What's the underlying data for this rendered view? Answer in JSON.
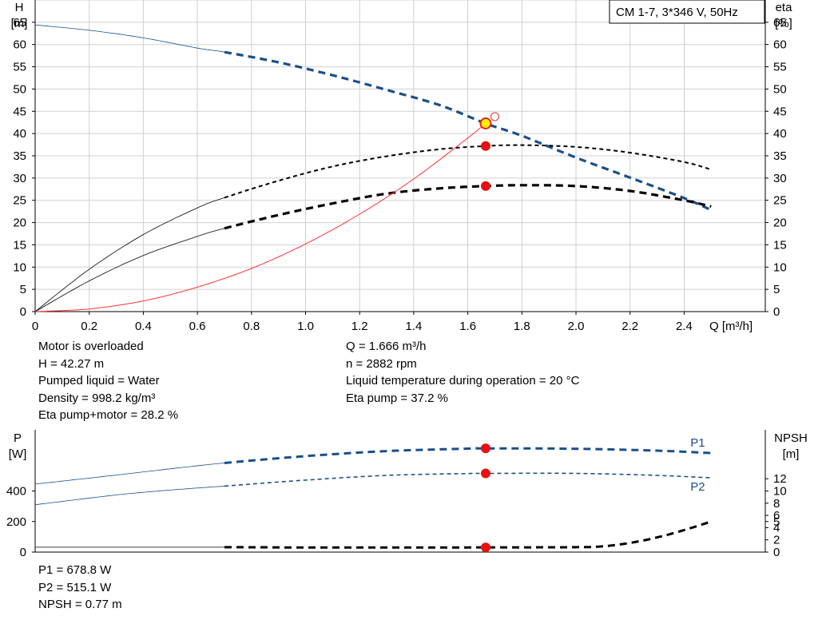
{
  "chart_data": [
    {
      "type": "line",
      "title": "CM 1-7, 3*346 V, 50Hz",
      "xlabel": "Q [m³/h]",
      "ylabel_left": [
        "H",
        "[m]"
      ],
      "ylabel_right": [
        "eta",
        "[%]"
      ],
      "xlim": [
        0,
        2.7
      ],
      "ylim": [
        0,
        70
      ],
      "x_ticks": [
        "0",
        "0.2",
        "0.4",
        "0.6",
        "0.8",
        "1.0",
        "1.2",
        "1.4",
        "1.6",
        "1.8",
        "2.0",
        "2.2",
        "2.4"
      ],
      "y_ticks": [
        "0",
        "5",
        "10",
        "15",
        "20",
        "25",
        "30",
        "35",
        "40",
        "45",
        "50",
        "55",
        "60",
        "65"
      ],
      "grid": true,
      "series": [
        {
          "key": "H",
          "color": "#1a4f8a",
          "x": [
            0,
            0.2,
            0.4,
            0.6,
            0.7,
            0.9,
            1.1,
            1.3,
            1.5,
            1.666,
            1.8,
            2.0,
            2.2,
            2.4,
            2.5
          ],
          "y": [
            64.4,
            63.2,
            61.5,
            59.2,
            58.3,
            56.0,
            53.1,
            49.8,
            46.3,
            42.27,
            39.5,
            34.6,
            30.1,
            25.5,
            22.8
          ]
        },
        {
          "key": "eta_pump",
          "color": "#000000",
          "x": [
            0,
            0.2,
            0.4,
            0.6,
            0.7,
            0.9,
            1.1,
            1.3,
            1.5,
            1.666,
            1.8,
            2.0,
            2.2,
            2.4,
            2.5
          ],
          "y": [
            0,
            9.5,
            17.3,
            23.3,
            25.6,
            29.4,
            32.6,
            34.9,
            36.5,
            37.2,
            37.4,
            37.0,
            35.7,
            33.6,
            31.9
          ]
        },
        {
          "key": "eta_pump_motor",
          "color": "#000000",
          "x": [
            0,
            0.2,
            0.4,
            0.6,
            0.7,
            0.9,
            1.1,
            1.3,
            1.5,
            1.666,
            1.8,
            2.0,
            2.2,
            2.4,
            2.5
          ],
          "y": [
            0,
            6.9,
            12.6,
            16.9,
            18.7,
            21.7,
            24.3,
            26.5,
            27.7,
            28.2,
            28.4,
            28.2,
            27.1,
            25.0,
            23.6
          ]
        },
        {
          "key": "system_curve",
          "color": "#ff3333",
          "x": [
            0,
            0.2,
            0.4,
            0.6,
            0.8,
            1.0,
            1.2,
            1.4,
            1.6,
            1.666
          ],
          "y": [
            0,
            0.6,
            2.4,
            5.5,
            9.7,
            15.2,
            21.9,
            29.8,
            39.0,
            42.27
          ]
        }
      ],
      "duty_points": [
        {
          "x": 1.666,
          "y": 42.27,
          "style": "yellow"
        },
        {
          "x": 1.666,
          "y": 37.2,
          "style": "red"
        },
        {
          "x": 1.666,
          "y": 28.2,
          "style": "red"
        }
      ],
      "open_marker": {
        "x": 1.7,
        "y": 43.8
      }
    },
    {
      "type": "line",
      "ylabel_left": [
        "P",
        "[W]"
      ],
      "ylabel_right": [
        "NPSH",
        "[m]"
      ],
      "xlim": [
        0,
        2.7
      ],
      "ylim_left": [
        0,
        800
      ],
      "ylim_right": [
        0,
        20
      ],
      "y_ticks_left": [
        "0",
        "200",
        "400"
      ],
      "y_ticks_right": [
        "0",
        "2",
        "4",
        "5",
        "6",
        "8",
        "10",
        "12"
      ],
      "y_ticks_right_values": [
        0,
        2,
        4,
        5,
        6,
        8,
        10,
        12
      ],
      "series": [
        {
          "key": "P1",
          "name": "P1",
          "color": "#1a4f8a",
          "x": [
            0,
            0.3,
            0.5,
            0.7,
            1.0,
            1.3,
            1.6,
            1.666,
            2.0,
            2.3,
            2.5
          ],
          "y": [
            445,
            504,
            545,
            583,
            628,
            661,
            677,
            678.8,
            676,
            664,
            648
          ]
        },
        {
          "key": "P2",
          "name": "P2",
          "color": "#1a4f8a",
          "x": [
            0,
            0.3,
            0.5,
            0.7,
            1.0,
            1.3,
            1.6,
            1.666,
            2.0,
            2.3,
            2.5
          ],
          "y": [
            310,
            374,
            406,
            432,
            471,
            502,
            514,
            515.1,
            515,
            502,
            486
          ]
        },
        {
          "key": "NPSH",
          "color": "#000000",
          "x": [
            0,
            0.7,
            1.0,
            1.4,
            1.666,
            2.0,
            2.1,
            2.2,
            2.3,
            2.4,
            2.5
          ],
          "y": [
            0.8,
            0.8,
            0.75,
            0.75,
            0.77,
            0.8,
            0.95,
            1.5,
            2.4,
            3.6,
            5.0
          ]
        }
      ],
      "duty_points": [
        {
          "x": 1.666,
          "y": 678.8,
          "axis": "left"
        },
        {
          "x": 1.666,
          "y": 515.1,
          "axis": "left"
        },
        {
          "x": 1.666,
          "y": 0.77,
          "axis": "right"
        }
      ]
    }
  ],
  "info": {
    "left": [
      "Motor is overloaded",
      "H = 42.27 m",
      "Pumped liquid = Water",
      "Density = 998.2 kg/m³",
      "Eta pump+motor = 28.2 %"
    ],
    "right": [
      "Q = 1.666 m³/h",
      "n = 2882 rpm",
      "Liquid temperature during operation = 20 °C",
      "Eta pump = 37.2 %"
    ],
    "bottom": [
      "P1 = 678.8 W",
      "P2 = 515.1 W",
      "NPSH = 0.77 m"
    ]
  }
}
